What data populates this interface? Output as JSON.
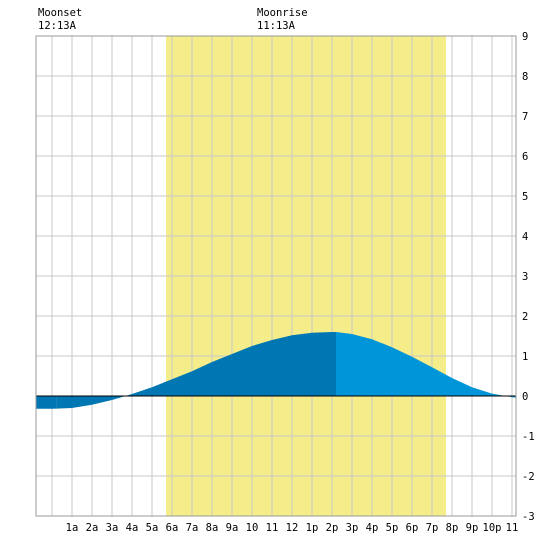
{
  "moon": {
    "moonset_label": "Moonset",
    "moonset_time": "12:13A",
    "moonrise_label": "Moonrise",
    "moonrise_time": "11:13A"
  },
  "chart_data": {
    "type": "area",
    "x_unit": "hour of day",
    "xlim": [
      -0.8,
      23.2
    ],
    "ylim": [
      -3,
      9
    ],
    "y_ticks": [
      -3,
      -2,
      -1,
      0,
      1,
      2,
      3,
      4,
      5,
      6,
      7,
      8,
      9
    ],
    "x_tick_hours": [
      1,
      2,
      3,
      4,
      5,
      6,
      7,
      8,
      9,
      10,
      11,
      12,
      13,
      14,
      15,
      16,
      17,
      18,
      19,
      20,
      21,
      22,
      23
    ],
    "x_tick_labels": [
      "1a",
      "2a",
      "3a",
      "4a",
      "5a",
      "6a",
      "7a",
      "8a",
      "9a",
      "10",
      "11",
      "12",
      "1p",
      "2p",
      "3p",
      "4p",
      "5p",
      "6p",
      "7p",
      "8p",
      "9p",
      "10p",
      "11"
    ],
    "daylight": {
      "start_hour": 5.7,
      "end_hour": 19.7
    },
    "moon_visible_until_hour": 0.22,
    "rising_until_hour": 14.2,
    "grid": true,
    "colors": {
      "daylight": "#f5ec8a",
      "grid": "#c8c8c8",
      "tide_moon": "#0077b3",
      "tide_rising": "#0077b3",
      "tide_falling": "#0095d8",
      "zero_line": "#000000",
      "border": "#999999"
    },
    "series": [
      {
        "x": [
          -0.8,
          0,
          1,
          2,
          3,
          4,
          5,
          6,
          7,
          8,
          9,
          10,
          11,
          12,
          13,
          14,
          14.2,
          15,
          16,
          17,
          18,
          19,
          20,
          21,
          22,
          23,
          23.2
        ],
        "values": [
          -0.32,
          -0.32,
          -0.3,
          -0.22,
          -0.1,
          0.05,
          0.22,
          0.42,
          0.62,
          0.85,
          1.05,
          1.25,
          1.4,
          1.52,
          1.58,
          1.6,
          1.6,
          1.55,
          1.42,
          1.22,
          0.98,
          0.72,
          0.45,
          0.22,
          0.06,
          -0.03,
          -0.04
        ]
      }
    ]
  }
}
